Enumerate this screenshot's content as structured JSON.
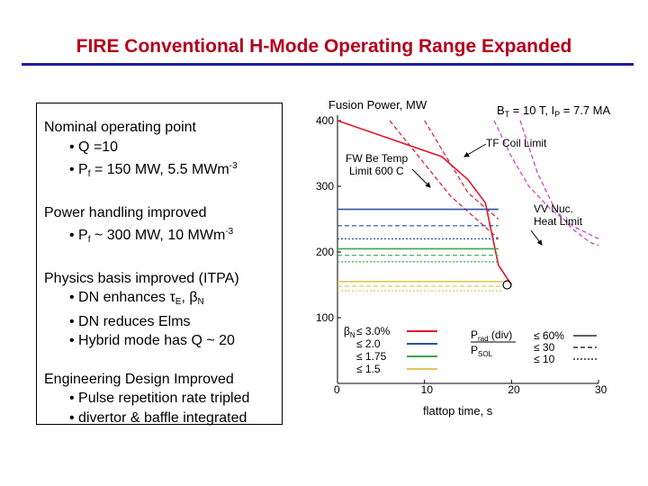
{
  "slide": {
    "title": "FIRE Conventional H-Mode Operating Range Expanded",
    "title_color": "#b3001b",
    "rule_color": "#1c1c9e"
  },
  "textbox": {
    "s1_heading": "Nominal operating point",
    "s1_b1": "• Q =10",
    "s1_b2_pre": "• P",
    "s1_b2_sub": "f",
    "s1_b2_mid": " = 150 MW,  5.5 MWm",
    "s1_b2_sup": "-3",
    "s2_heading": "Power handling improved",
    "s2_b1_pre": "• P",
    "s2_b1_sub": "f",
    "s2_b1_mid": " ~ 300 MW, 10 MWm",
    "s2_b1_sup": "-3",
    "s3_heading": "Physics basis improved (ITPA)",
    "s3_b1_pre": "• DN enhances ",
    "s3_b1_tau": "τ",
    "s3_b1_tau_sub": "E",
    "s3_b1_sep": ", ",
    "s3_b1_beta": "β",
    "s3_b1_beta_sub": "N",
    "s3_b2": "• DN reduces Elms",
    "s3_b3": "• Hybrid mode has Q ~ 20",
    "s4_heading": "Engineering Design Improved",
    "s4_b1": "• Pulse repetition rate tripled",
    "s4_b2": "• divertor & baffle integrated"
  },
  "chart_data": {
    "type": "line",
    "title": "Fusion Power, MW",
    "title_right": "B_T = 10 T, I_P = 7.7 MA",
    "title_right_parts": {
      "b": "B",
      "b_sub": "T",
      "b_rest": " = 10 T, I",
      "i_sub": "P",
      "i_rest": " = 7.7 MA"
    },
    "xlabel": "flattop time, s",
    "ylabel": "Fusion Power, MW",
    "xlim": [
      0,
      30
    ],
    "ylim": [
      0,
      400
    ],
    "x_ticks": [
      0,
      10,
      20,
      30
    ],
    "y_ticks": [
      100,
      200,
      300,
      400
    ],
    "colors": {
      "beta_3_0": "#e0142a",
      "beta_2_0": "#2e4fa0",
      "beta_1_75": "#3aa84a",
      "beta_1_5": "#e8c35a",
      "limit_curve": "#c23cc8",
      "fw_limit": "#c0182a",
      "axis": "#000000"
    },
    "series": [
      {
        "name": "βN ≤ 3.0% envelope",
        "style": "solid",
        "color_key": "beta_3_0",
        "x": [
          0,
          12,
          15,
          17,
          18.5,
          20
        ],
        "y": [
          400,
          345,
          310,
          275,
          180,
          150
        ]
      },
      {
        "name": "Pfus-based ratio ≤ 60% curve",
        "style": "dashed",
        "color_key": "beta_3_0",
        "x": [
          10,
          15,
          18.5
        ],
        "y": [
          400,
          290,
          250
        ]
      },
      {
        "name": "Pfus-based ratio ≤ 30% curve",
        "style": "dashed",
        "color_key": "beta_3_0",
        "x": [
          6,
          13,
          18.5
        ],
        "y": [
          400,
          285,
          220
        ]
      },
      {
        "name": "βN ≤ 2.0",
        "style": "solid",
        "color_key": "beta_2_0",
        "x": [
          0,
          18.5
        ],
        "y": [
          265,
          265
        ]
      },
      {
        "name": "βN ≤ 2.0 (≤30%)",
        "style": "dashed",
        "color_key": "beta_2_0",
        "x": [
          0,
          18.5
        ],
        "y": [
          240,
          240
        ]
      },
      {
        "name": "βN ≤ 2.0 (≤10%)",
        "style": "dotted",
        "color_key": "beta_2_0",
        "x": [
          0,
          18.5
        ],
        "y": [
          220,
          220
        ]
      },
      {
        "name": "βN ≤ 1.75",
        "style": "solid",
        "color_key": "beta_1_75",
        "x": [
          0,
          18.5
        ],
        "y": [
          205,
          205
        ]
      },
      {
        "name": "βN ≤ 1.75 (≤30%)",
        "style": "dashed",
        "color_key": "beta_1_75",
        "x": [
          0,
          18.5
        ],
        "y": [
          195,
          195
        ]
      },
      {
        "name": "βN ≤ 1.75 (≤10%)",
        "style": "dotted",
        "color_key": "beta_1_75",
        "x": [
          0,
          18.5
        ],
        "y": [
          185,
          185
        ]
      },
      {
        "name": "βN ≤ 1.5",
        "style": "solid",
        "color_key": "beta_1_5",
        "x": [
          0,
          19
        ],
        "y": [
          155,
          155
        ]
      },
      {
        "name": "βN ≤ 1.5 (≤30%)",
        "style": "dashed",
        "color_key": "beta_1_5",
        "x": [
          0,
          19
        ],
        "y": [
          148,
          148
        ]
      },
      {
        "name": "βN ≤ 1.5 (≤10%)",
        "style": "dotted",
        "color_key": "beta_1_5",
        "x": [
          0,
          19
        ],
        "y": [
          141,
          141
        ]
      },
      {
        "name": "TF Coil Limit",
        "style": "dashed",
        "color_key": "limit_curve",
        "x": [
          18,
          20,
          22,
          24.5,
          27,
          30
        ],
        "y": [
          400,
          345,
          300,
          265,
          240,
          220
        ]
      },
      {
        "name": "VV Nuc. Heat Limit",
        "style": "dashed",
        "color_key": "limit_curve",
        "x": [
          21,
          23,
          25,
          27,
          29,
          30
        ],
        "y": [
          400,
          320,
          265,
          235,
          215,
          210
        ]
      }
    ],
    "operating_point": {
      "x": 19.5,
      "y": 150
    },
    "annotations": {
      "tf_coil": "TF Coil Limit",
      "fw_line1": "FW Be Temp",
      "fw_line2": "Limit 600 C",
      "vv_line1": "VV Nuc.",
      "vv_line2": "Heat Limit"
    },
    "legend": {
      "beta_title_pre": "β",
      "beta_title_sub": "N",
      "beta_items": [
        "≤ 3.0%",
        "≤ 2.0",
        "≤ 1.75",
        "≤ 1.5"
      ],
      "ratio_title_pre": "P",
      "ratio_title_sub": "rad",
      "ratio_title_rest": " (div)",
      "ratio_denominator_pre": "P",
      "ratio_denominator_sub": "SOL",
      "ratio_items": [
        "≤ 60%",
        "≤ 30",
        "≤ 10"
      ]
    }
  }
}
